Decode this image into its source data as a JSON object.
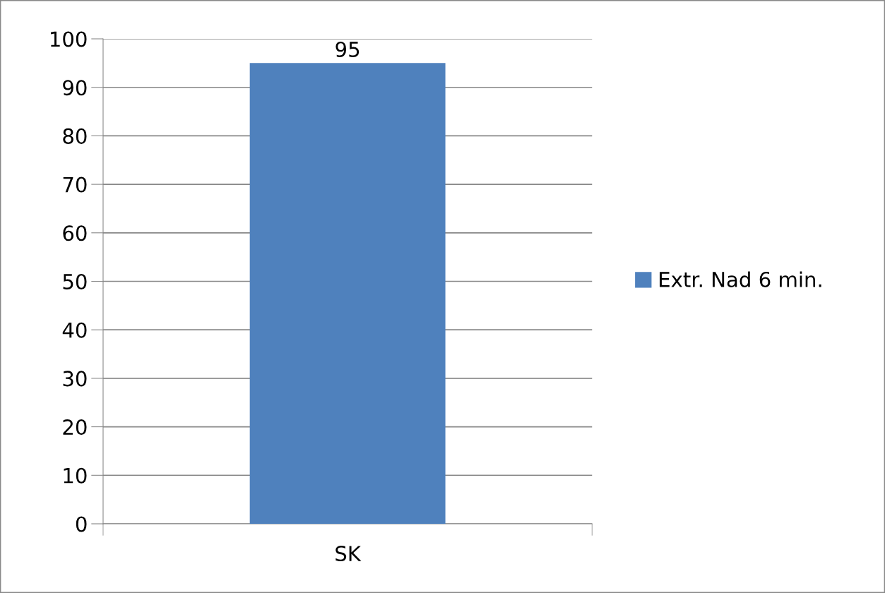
{
  "chart_data": {
    "type": "bar",
    "categories": [
      "SK"
    ],
    "series": [
      {
        "name": "Extr. Nad 6 min.",
        "color": "#4f81bd",
        "values": [
          95
        ]
      }
    ],
    "ylim": [
      0,
      100
    ],
    "yticks": [
      0,
      10,
      20,
      30,
      40,
      50,
      60,
      70,
      80,
      90,
      100
    ],
    "grid": "y",
    "legend": "right",
    "data_labels": true
  }
}
